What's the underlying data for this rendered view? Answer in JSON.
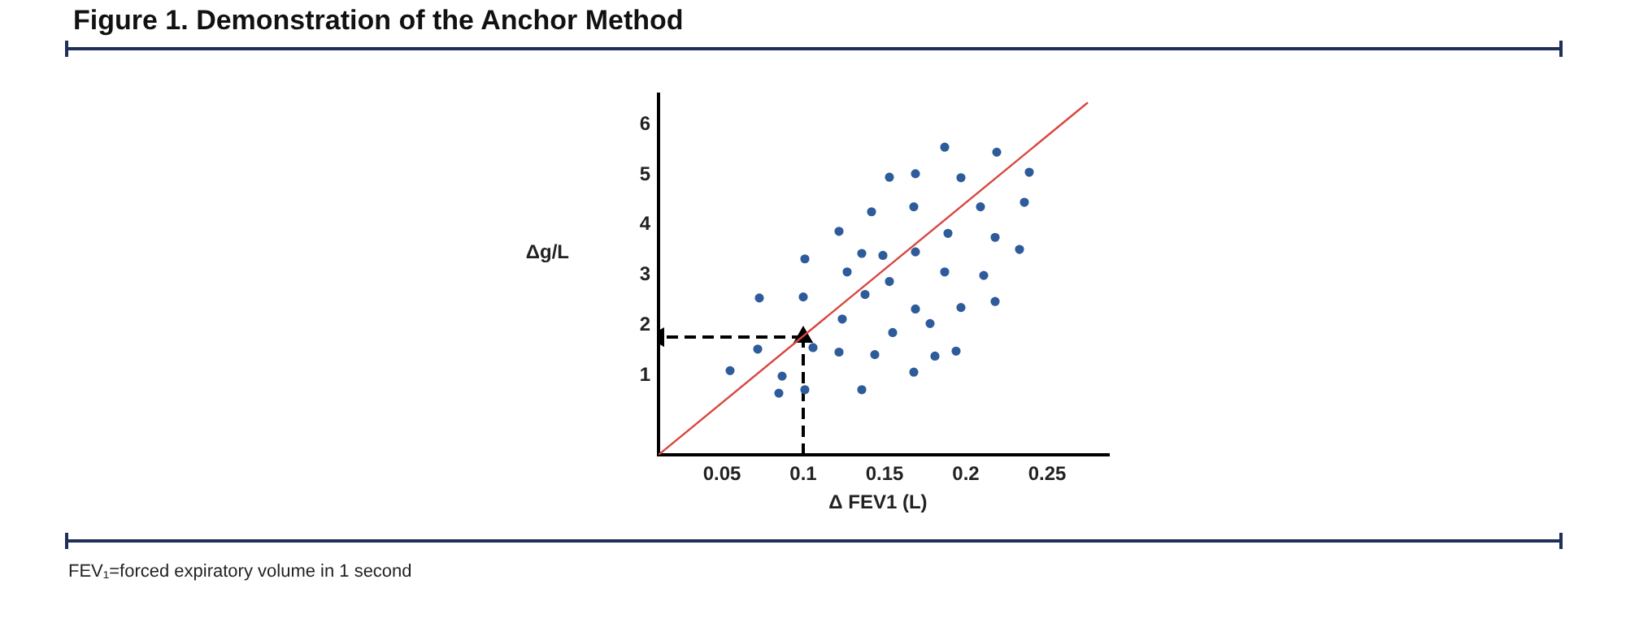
{
  "chart_data": {
    "type": "scatter",
    "title": "Figure 1. Demonstration of the Anchor Method",
    "xlabel": "Δ FEV1 (L)",
    "ylabel": "Δg/L",
    "annotations": [
      "FEV₁=forced expiratory volume in 1 second"
    ],
    "xlim": [
      0.011,
      0.288
    ],
    "ylim": [
      -0.59,
      6.6
    ],
    "xticks": [
      0.05,
      0.1,
      0.15,
      0.2,
      0.25
    ],
    "yticks": [
      1,
      2,
      3,
      4,
      5,
      6
    ],
    "grid": false,
    "legend": false,
    "series": [
      {
        "type": "scatter",
        "color": "#2e5c9a",
        "marker": "circle",
        "x": [
          0.187,
          0.219,
          0.239,
          0.169,
          0.153,
          0.197,
          0.142,
          0.168,
          0.209,
          0.236,
          0.122,
          0.189,
          0.218,
          0.136,
          0.149,
          0.169,
          0.233,
          0.101,
          0.127,
          0.187,
          0.211,
          0.153,
          0.138,
          0.073,
          0.1,
          0.218,
          0.169,
          0.197,
          0.178,
          0.124,
          0.155,
          0.106,
          0.072,
          0.122,
          0.144,
          0.194,
          0.181,
          0.055,
          0.168,
          0.087,
          0.085,
          0.101,
          0.136
        ],
        "values": [
          5.55,
          5.45,
          5.05,
          5.02,
          4.95,
          4.94,
          4.26,
          4.36,
          4.36,
          4.45,
          3.87,
          3.83,
          3.75,
          3.43,
          3.39,
          3.46,
          3.51,
          3.32,
          3.06,
          3.06,
          2.99,
          2.87,
          2.61,
          2.54,
          2.56,
          2.47,
          2.32,
          2.35,
          2.03,
          2.12,
          1.85,
          1.55,
          1.52,
          1.46,
          1.41,
          1.48,
          1.38,
          1.09,
          1.06,
          0.98,
          0.64,
          0.71,
          0.71
        ]
      },
      {
        "type": "line",
        "color": "#d9463f",
        "marker": "none",
        "line_style": "solid",
        "x": [
          0.011,
          0.275
        ],
        "values": [
          -0.59,
          6.44
        ]
      },
      {
        "type": "line",
        "color": "#000000",
        "marker": "triangle",
        "line_style": "dashed",
        "x": [
          0.1,
          0.1
        ],
        "values": [
          -0.59,
          1.76
        ]
      },
      {
        "type": "line",
        "color": "#000000",
        "marker": "triangle",
        "line_style": "dashed",
        "x": [
          0.1,
          0.011
        ],
        "values": [
          1.76,
          1.76
        ]
      }
    ]
  }
}
